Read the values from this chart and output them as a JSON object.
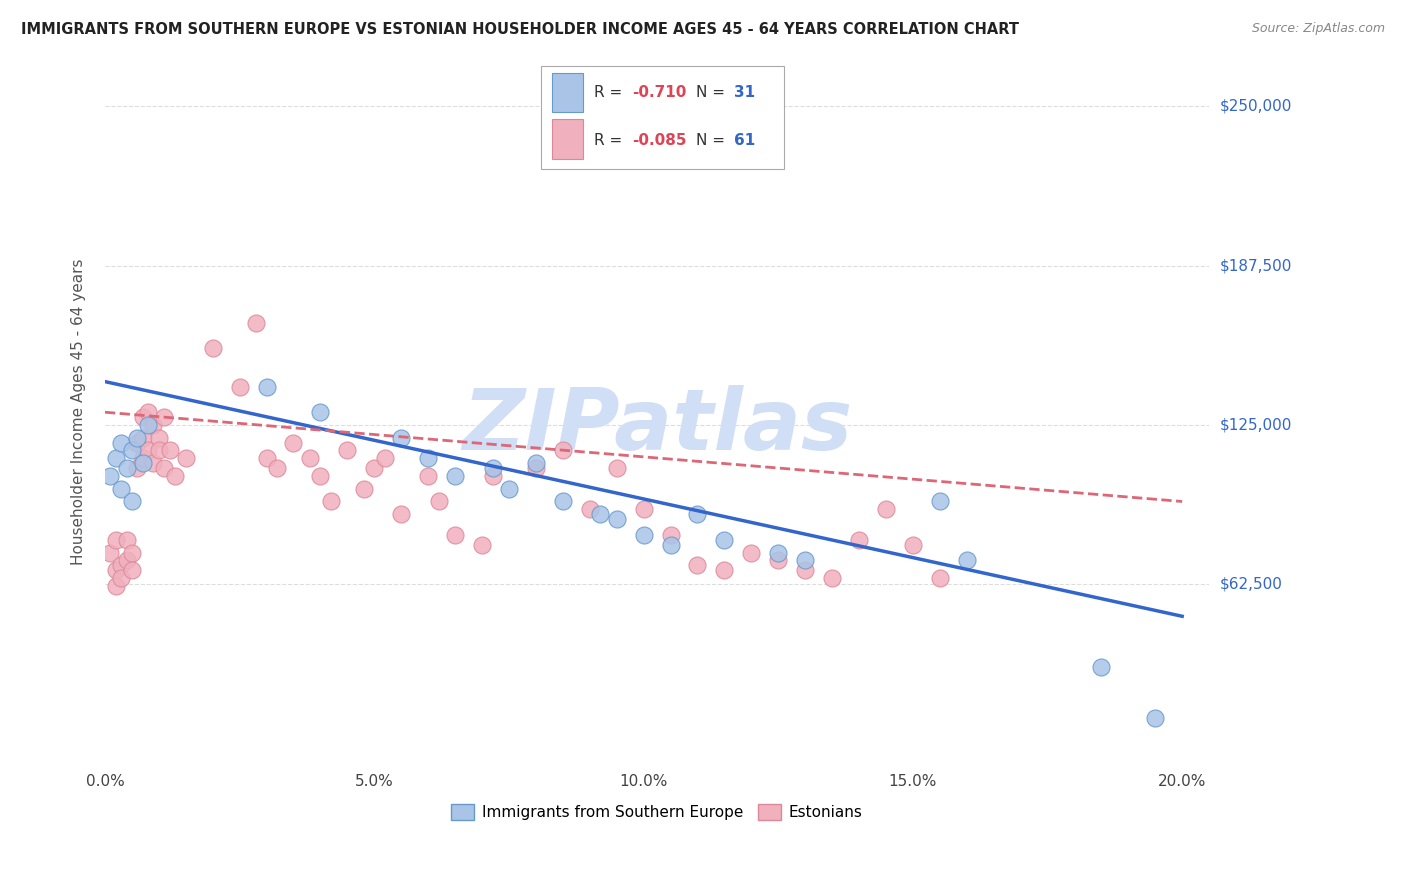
{
  "title": "IMMIGRANTS FROM SOUTHERN EUROPE VS ESTONIAN HOUSEHOLDER INCOME AGES 45 - 64 YEARS CORRELATION CHART",
  "source": "Source: ZipAtlas.com",
  "ylabel": "Householder Income Ages 45 - 64 years",
  "xlim": [
    0.0,
    0.205
  ],
  "ylim": [
    -10000,
    270000
  ],
  "xtick_labels": [
    "0.0%",
    "5.0%",
    "10.0%",
    "15.0%",
    "20.0%"
  ],
  "xtick_values": [
    0.0,
    0.05,
    0.1,
    0.15,
    0.2
  ],
  "ytick_labels": [
    "$62,500",
    "$125,000",
    "$187,500",
    "$250,000"
  ],
  "ytick_values": [
    62500,
    125000,
    187500,
    250000
  ],
  "blue_scatter_color": "#aac4e8",
  "blue_scatter_edge": "#6699cc",
  "pink_scatter_color": "#f0b0be",
  "pink_scatter_edge": "#dd8899",
  "blue_line_color": "#3366cc",
  "pink_line_color": "#dd6677",
  "watermark_text": "ZIPatlas",
  "watermark_color": "#d0dff5",
  "background_color": "#ffffff",
  "legend_r_color": "#dd4455",
  "legend_n_color": "#3366cc",
  "blue_x": [
    0.001,
    0.002,
    0.003,
    0.003,
    0.004,
    0.005,
    0.005,
    0.006,
    0.007,
    0.008,
    0.03,
    0.04,
    0.055,
    0.06,
    0.065,
    0.072,
    0.075,
    0.08,
    0.085,
    0.092,
    0.095,
    0.1,
    0.105,
    0.11,
    0.115,
    0.125,
    0.13,
    0.155,
    0.16,
    0.185,
    0.195
  ],
  "blue_y": [
    105000,
    112000,
    118000,
    100000,
    108000,
    115000,
    95000,
    120000,
    110000,
    125000,
    140000,
    130000,
    120000,
    112000,
    105000,
    108000,
    100000,
    110000,
    95000,
    90000,
    88000,
    82000,
    78000,
    90000,
    80000,
    75000,
    72000,
    95000,
    72000,
    30000,
    10000
  ],
  "pink_x": [
    0.001,
    0.002,
    0.002,
    0.002,
    0.003,
    0.003,
    0.004,
    0.004,
    0.005,
    0.005,
    0.006,
    0.006,
    0.007,
    0.007,
    0.007,
    0.008,
    0.008,
    0.009,
    0.009,
    0.01,
    0.01,
    0.011,
    0.011,
    0.012,
    0.013,
    0.015,
    0.02,
    0.025,
    0.028,
    0.03,
    0.032,
    0.035,
    0.038,
    0.04,
    0.042,
    0.045,
    0.048,
    0.05,
    0.052,
    0.055,
    0.06,
    0.062,
    0.065,
    0.07,
    0.072,
    0.08,
    0.085,
    0.09,
    0.095,
    0.1,
    0.105,
    0.11,
    0.115,
    0.12,
    0.125,
    0.13,
    0.135,
    0.14,
    0.145,
    0.15,
    0.155
  ],
  "pink_y": [
    75000,
    68000,
    80000,
    62000,
    70000,
    65000,
    80000,
    72000,
    75000,
    68000,
    108000,
    118000,
    120000,
    112000,
    128000,
    115000,
    130000,
    110000,
    125000,
    120000,
    115000,
    128000,
    108000,
    115000,
    105000,
    112000,
    155000,
    140000,
    165000,
    112000,
    108000,
    118000,
    112000,
    105000,
    95000,
    115000,
    100000,
    108000,
    112000,
    90000,
    105000,
    95000,
    82000,
    78000,
    105000,
    108000,
    115000,
    92000,
    108000,
    92000,
    82000,
    70000,
    68000,
    75000,
    72000,
    68000,
    65000,
    80000,
    92000,
    78000,
    65000
  ]
}
